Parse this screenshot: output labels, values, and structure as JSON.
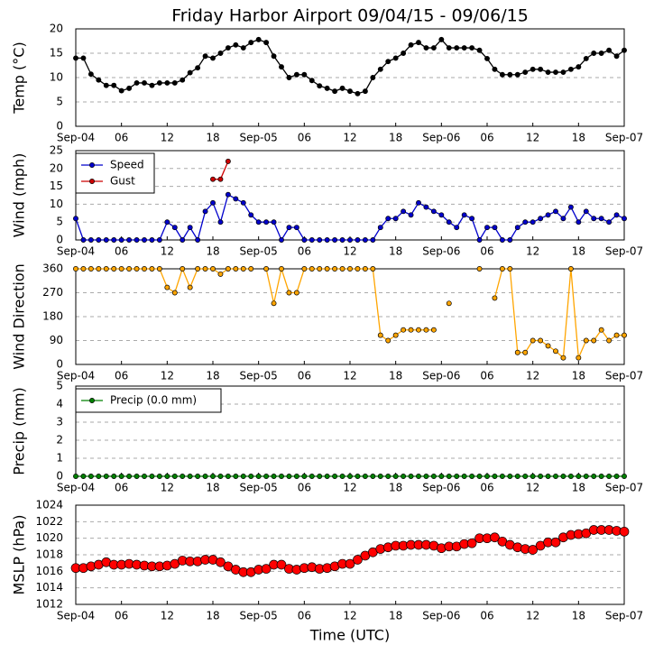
{
  "chart_data": [
    {
      "type": "line",
      "title": "Friday Harbor Airport 09/04/15 - 09/06/15",
      "ylabel": "Temp (°C)",
      "x": [
        0,
        1,
        2,
        3,
        4,
        5,
        6,
        7,
        8,
        9,
        10,
        11,
        12,
        13,
        14,
        15,
        16,
        17,
        18,
        19,
        20,
        21,
        22,
        23,
        24,
        25,
        26,
        27,
        28,
        29,
        30,
        31,
        32,
        33,
        34,
        35,
        36,
        37,
        38,
        39,
        40,
        41,
        42,
        43,
        44,
        45,
        46,
        47,
        48,
        49,
        50,
        51,
        52,
        53,
        54,
        55,
        56,
        57,
        58,
        59,
        60,
        61,
        62,
        63,
        64,
        65,
        66,
        67,
        68,
        69,
        70,
        71,
        72
      ],
      "series": [
        {
          "name": "Temp",
          "color": "#000000",
          "values": [
            14,
            14,
            10.7,
            9.5,
            8.4,
            8.4,
            7.3,
            7.8,
            8.9,
            8.9,
            8.4,
            8.9,
            8.9,
            8.9,
            9.5,
            11,
            12,
            14.4,
            14,
            15,
            16.1,
            16.7,
            16.1,
            17.2,
            17.8,
            17.2,
            14.4,
            12.2,
            10,
            10.6,
            10.6,
            9.4,
            8.3,
            7.8,
            7.2,
            7.8,
            7.2,
            6.7,
            7.2,
            10,
            11.7,
            13.3,
            14,
            15,
            16.7,
            17.2,
            16.1,
            16.1,
            17.8,
            16.1,
            16.1,
            16.1,
            16.1,
            15.6,
            13.9,
            11.7,
            10.6,
            10.6,
            10.6,
            11.1,
            11.7,
            11.7,
            11.1,
            11.1,
            11.1,
            11.7,
            12.2,
            13.9,
            15,
            15,
            15.6,
            14.4,
            15.6
          ]
        }
      ],
      "xlim": [
        0,
        72
      ],
      "xticks": [
        {
          "value": 0,
          "label": "Sep-04"
        },
        {
          "value": 6,
          "label": "06"
        },
        {
          "value": 12,
          "label": "12"
        },
        {
          "value": 18,
          "label": "18"
        },
        {
          "value": 24,
          "label": "Sep-05"
        },
        {
          "value": 30,
          "label": "06"
        },
        {
          "value": 36,
          "label": "12"
        },
        {
          "value": 42,
          "label": "18"
        },
        {
          "value": 48,
          "label": "Sep-06"
        },
        {
          "value": 54,
          "label": "06"
        },
        {
          "value": 60,
          "label": "12"
        },
        {
          "value": 66,
          "label": "18"
        },
        {
          "value": 72,
          "label": "Sep-07"
        }
      ],
      "ylim": [
        0,
        20
      ],
      "yticks": [
        0,
        5,
        10,
        15,
        20
      ],
      "grid": true
    },
    {
      "type": "line",
      "ylabel": "Wind (mph)",
      "x": [
        0,
        1,
        2,
        3,
        4,
        5,
        6,
        7,
        8,
        9,
        10,
        11,
        12,
        13,
        14,
        15,
        16,
        17,
        18,
        19,
        20,
        21,
        22,
        23,
        24,
        25,
        26,
        27,
        28,
        29,
        30,
        31,
        32,
        33,
        34,
        35,
        36,
        37,
        38,
        39,
        40,
        41,
        42,
        43,
        44,
        45,
        46,
        47,
        48,
        49,
        50,
        51,
        52,
        53,
        54,
        55,
        56,
        57,
        58,
        59,
        60,
        61,
        62,
        63,
        64,
        65,
        66,
        67,
        68,
        69,
        70,
        71,
        72
      ],
      "series": [
        {
          "name": "Speed",
          "color": "#0000cc",
          "values": [
            6,
            0,
            0,
            0,
            0,
            0,
            0,
            0,
            0,
            0,
            0,
            0,
            5,
            3.5,
            0,
            3.5,
            0,
            8,
            10.4,
            5,
            12.7,
            11.5,
            10.4,
            7,
            5,
            5,
            5,
            0,
            3.5,
            3.5,
            0,
            0,
            0,
            0,
            0,
            0,
            0,
            0,
            0,
            0,
            3.5,
            6,
            6,
            8,
            7,
            10.4,
            9.2,
            8,
            7,
            5,
            3.5,
            7,
            6,
            0,
            3.5,
            3.5,
            0,
            0,
            3.5,
            5,
            5,
            6,
            7,
            8,
            6,
            9.2,
            5,
            8,
            6,
            6,
            5,
            7,
            6
          ]
        },
        {
          "name": "Gust",
          "color": "#cc0000",
          "values": [
            null,
            null,
            null,
            null,
            null,
            null,
            null,
            null,
            null,
            null,
            null,
            null,
            null,
            null,
            null,
            null,
            null,
            null,
            17,
            17,
            22,
            null,
            null,
            null,
            null,
            null,
            null,
            null,
            null,
            null,
            null,
            null,
            null,
            null,
            null,
            null,
            null,
            null,
            null,
            null,
            null,
            null,
            null,
            null,
            null,
            null,
            null,
            null,
            null,
            null,
            null,
            null,
            null,
            null,
            null,
            null,
            null,
            null,
            null,
            null,
            null,
            null,
            null,
            null,
            null,
            null,
            null,
            null,
            null,
            null,
            null,
            null,
            null
          ]
        }
      ],
      "xlim": [
        0,
        72
      ],
      "xticks": [
        {
          "value": 0,
          "label": "Sep-04"
        },
        {
          "value": 6,
          "label": "06"
        },
        {
          "value": 12,
          "label": "12"
        },
        {
          "value": 18,
          "label": "18"
        },
        {
          "value": 24,
          "label": "Sep-05"
        },
        {
          "value": 30,
          "label": "06"
        },
        {
          "value": 36,
          "label": "12"
        },
        {
          "value": 42,
          "label": "18"
        },
        {
          "value": 48,
          "label": "Sep-06"
        },
        {
          "value": 54,
          "label": "06"
        },
        {
          "value": 60,
          "label": "12"
        },
        {
          "value": 66,
          "label": "18"
        },
        {
          "value": 72,
          "label": "Sep-07"
        }
      ],
      "ylim": [
        0,
        25
      ],
      "yticks": [
        0,
        5,
        10,
        15,
        20,
        25
      ],
      "grid": true,
      "legend": "upper left"
    },
    {
      "type": "line",
      "ylabel": "Wind Direction",
      "x": [
        0,
        1,
        2,
        3,
        4,
        5,
        6,
        7,
        8,
        9,
        10,
        11,
        12,
        13,
        14,
        15,
        16,
        17,
        18,
        19,
        20,
        21,
        22,
        23,
        24,
        25,
        26,
        27,
        28,
        29,
        30,
        31,
        32,
        33,
        34,
        35,
        36,
        37,
        38,
        39,
        40,
        41,
        42,
        43,
        44,
        45,
        46,
        47,
        48,
        49,
        50,
        51,
        52,
        53,
        54,
        55,
        56,
        57,
        58,
        59,
        60,
        61,
        62,
        63,
        64,
        65,
        66,
        67,
        68,
        69,
        70,
        71,
        72
      ],
      "series": [
        {
          "name": "Direction",
          "color": "#ffa500",
          "values": [
            360,
            360,
            360,
            360,
            360,
            360,
            360,
            360,
            360,
            360,
            360,
            360,
            290,
            270,
            360,
            290,
            360,
            360,
            360,
            340,
            360,
            360,
            360,
            360,
            null,
            360,
            230,
            360,
            270,
            270,
            360,
            360,
            360,
            360,
            360,
            360,
            360,
            360,
            360,
            360,
            110,
            90,
            110,
            130,
            130,
            130,
            130,
            130,
            null,
            230,
            null,
            null,
            null,
            360,
            null,
            250,
            360,
            360,
            45,
            45,
            90,
            90,
            70,
            50,
            25,
            360,
            25,
            90,
            90,
            130,
            90,
            110,
            110
          ]
        }
      ],
      "xlim": [
        0,
        72
      ],
      "xticks": [
        {
          "value": 0,
          "label": "Sep-04"
        },
        {
          "value": 6,
          "label": "06"
        },
        {
          "value": 12,
          "label": "12"
        },
        {
          "value": 18,
          "label": "18"
        },
        {
          "value": 24,
          "label": "Sep-05"
        },
        {
          "value": 30,
          "label": "06"
        },
        {
          "value": 36,
          "label": "12"
        },
        {
          "value": 42,
          "label": "18"
        },
        {
          "value": 48,
          "label": "Sep-06"
        },
        {
          "value": 54,
          "label": "06"
        },
        {
          "value": 60,
          "label": "12"
        },
        {
          "value": 66,
          "label": "18"
        },
        {
          "value": 72,
          "label": "Sep-07"
        }
      ],
      "ylim": [
        0,
        360
      ],
      "yticks": [
        0,
        90,
        180,
        270,
        360
      ],
      "grid": true
    },
    {
      "type": "line",
      "ylabel": "Precip (mm)",
      "x": [
        0,
        1,
        2,
        3,
        4,
        5,
        6,
        7,
        8,
        9,
        10,
        11,
        12,
        13,
        14,
        15,
        16,
        17,
        18,
        19,
        20,
        21,
        22,
        23,
        24,
        25,
        26,
        27,
        28,
        29,
        30,
        31,
        32,
        33,
        34,
        35,
        36,
        37,
        38,
        39,
        40,
        41,
        42,
        43,
        44,
        45,
        46,
        47,
        48,
        49,
        50,
        51,
        52,
        53,
        54,
        55,
        56,
        57,
        58,
        59,
        60,
        61,
        62,
        63,
        64,
        65,
        66,
        67,
        68,
        69,
        70,
        71,
        72
      ],
      "series": [
        {
          "name": "Precip (0.0 mm)",
          "color": "#008000",
          "values": [
            0,
            0,
            0,
            0,
            0,
            0,
            0,
            0,
            0,
            0,
            0,
            0,
            0,
            0,
            0,
            0,
            0,
            0,
            0,
            0,
            0,
            0,
            0,
            0,
            0,
            0,
            0,
            0,
            0,
            0,
            0,
            0,
            0,
            0,
            0,
            0,
            0,
            0,
            0,
            0,
            0,
            0,
            0,
            0,
            0,
            0,
            0,
            0,
            0,
            0,
            0,
            0,
            0,
            0,
            0,
            0,
            0,
            0,
            0,
            0,
            0,
            0,
            0,
            0,
            0,
            0,
            0,
            0,
            0,
            0,
            0,
            0,
            0
          ]
        }
      ],
      "xlim": [
        0,
        72
      ],
      "xticks": [
        {
          "value": 0,
          "label": "Sep-04"
        },
        {
          "value": 6,
          "label": "06"
        },
        {
          "value": 12,
          "label": "12"
        },
        {
          "value": 18,
          "label": "18"
        },
        {
          "value": 24,
          "label": "Sep-05"
        },
        {
          "value": 30,
          "label": "06"
        },
        {
          "value": 36,
          "label": "12"
        },
        {
          "value": 42,
          "label": "18"
        },
        {
          "value": 48,
          "label": "Sep-06"
        },
        {
          "value": 54,
          "label": "06"
        },
        {
          "value": 60,
          "label": "12"
        },
        {
          "value": 66,
          "label": "18"
        },
        {
          "value": 72,
          "label": "Sep-07"
        }
      ],
      "ylim": [
        0,
        5
      ],
      "yticks": [
        0,
        1,
        2,
        3,
        4,
        5
      ],
      "grid": true,
      "legend": "upper left"
    },
    {
      "type": "line",
      "ylabel": "MSLP (hPa)",
      "xlabel": "Time (UTC)",
      "x": [
        0,
        1,
        2,
        3,
        4,
        5,
        6,
        7,
        8,
        9,
        10,
        11,
        12,
        13,
        14,
        15,
        16,
        17,
        18,
        19,
        20,
        21,
        22,
        23,
        24,
        25,
        26,
        27,
        28,
        29,
        30,
        31,
        32,
        33,
        34,
        35,
        36,
        37,
        38,
        39,
        40,
        41,
        42,
        43,
        44,
        45,
        46,
        47,
        48,
        49,
        50,
        51,
        52,
        53,
        54,
        55,
        56,
        57,
        58,
        59,
        60,
        61,
        62,
        63,
        64,
        65,
        66,
        67,
        68,
        69,
        70,
        71,
        72
      ],
      "series": [
        {
          "name": "MSLP",
          "color": "#ff0000",
          "linestyle": "none",
          "values": [
            1016.4,
            1016.4,
            1016.6,
            1016.8,
            1017.1,
            1016.8,
            1016.8,
            1016.9,
            1016.8,
            1016.7,
            1016.6,
            1016.6,
            1016.7,
            1016.9,
            1017.3,
            1017.2,
            1017.2,
            1017.4,
            1017.4,
            1017.1,
            1016.6,
            1016.2,
            1015.9,
            1015.9,
            1016.2,
            1016.3,
            1016.8,
            1016.8,
            1016.3,
            1016.2,
            1016.4,
            1016.5,
            1016.3,
            1016.4,
            1016.6,
            1016.9,
            1016.9,
            1017.4,
            1017.9,
            1018.3,
            1018.7,
            1018.9,
            1019.1,
            1019.1,
            1019.2,
            1019.2,
            1019.2,
            1019.1,
            1018.8,
            1019,
            1019,
            1019.3,
            1019.4,
            1020,
            1020,
            1020.1,
            1019.6,
            1019.2,
            1018.9,
            1018.7,
            1018.6,
            1019.1,
            1019.5,
            1019.5,
            1020.1,
            1020.4,
            1020.5,
            1020.6,
            1021,
            1021,
            1021,
            1020.9,
            1020.8
          ]
        }
      ],
      "xlim": [
        0,
        72
      ],
      "xticks": [
        {
          "value": 0,
          "label": "Sep-04"
        },
        {
          "value": 6,
          "label": "06"
        },
        {
          "value": 12,
          "label": "12"
        },
        {
          "value": 18,
          "label": "18"
        },
        {
          "value": 24,
          "label": "Sep-05"
        },
        {
          "value": 30,
          "label": "06"
        },
        {
          "value": 36,
          "label": "12"
        },
        {
          "value": 42,
          "label": "18"
        },
        {
          "value": 48,
          "label": "Sep-06"
        },
        {
          "value": 54,
          "label": "06"
        },
        {
          "value": 60,
          "label": "12"
        },
        {
          "value": 66,
          "label": "18"
        },
        {
          "value": 72,
          "label": "Sep-07"
        }
      ],
      "ylim": [
        1012,
        1024
      ],
      "yticks": [
        1012,
        1014,
        1016,
        1018,
        1020,
        1022,
        1024
      ],
      "grid": true
    }
  ]
}
